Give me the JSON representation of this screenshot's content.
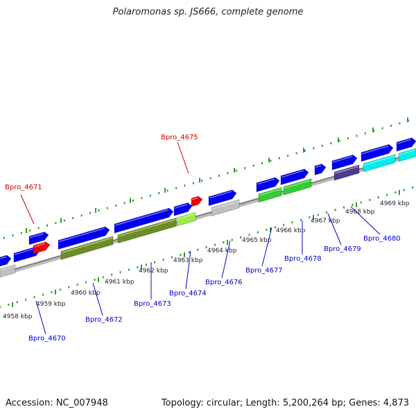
{
  "title": "Polaromonas sp. JS666, complete genome",
  "footer": {
    "accession": "Accession: NC_007948",
    "summary": "Topology: circular; Length: 5,200,264 bp; Genes: 4,873"
  },
  "colors": {
    "forward_gene": "#0000ee",
    "rna_gene": "#ee0000",
    "label_protein": "#0000cc",
    "label_rna": "#cc0000",
    "backbone": "#999999",
    "tick": "#339933",
    "cog_olive": "#6b8e23",
    "cog_green": "#33cc33",
    "cog_lightgreen": "#99ee44",
    "cog_gray": "#c0c0c0",
    "cog_cyan": "#00eeee",
    "cog_purple": "#4b3c8c"
  },
  "map": {
    "scale_labels": [
      "4958 kbp",
      "4959 kbp",
      "4960 kbp",
      "4961 kbp",
      "4962 kbp",
      "4963 kbp",
      "4964 kbp",
      "4965 kbp",
      "4966 kbp",
      "4967 kbp",
      "4968 kbp",
      "4969 kbp"
    ],
    "genes": [
      {
        "name": "Bpro_4670",
        "type": "CDS"
      },
      {
        "name": "Bpro_4671",
        "type": "RNA"
      },
      {
        "name": "Bpro_4672",
        "type": "CDS"
      },
      {
        "name": "Bpro_4673",
        "type": "CDS"
      },
      {
        "name": "Bpro_4674",
        "type": "CDS"
      },
      {
        "name": "Bpro_4675",
        "type": "RNA"
      },
      {
        "name": "Bpro_4676",
        "type": "CDS"
      },
      {
        "name": "Bpro_4677",
        "type": "CDS"
      },
      {
        "name": "Bpro_4678",
        "type": "CDS"
      },
      {
        "name": "Bpro_4679",
        "type": "CDS"
      },
      {
        "name": "Bpro_4680",
        "type": "CDS"
      }
    ]
  }
}
